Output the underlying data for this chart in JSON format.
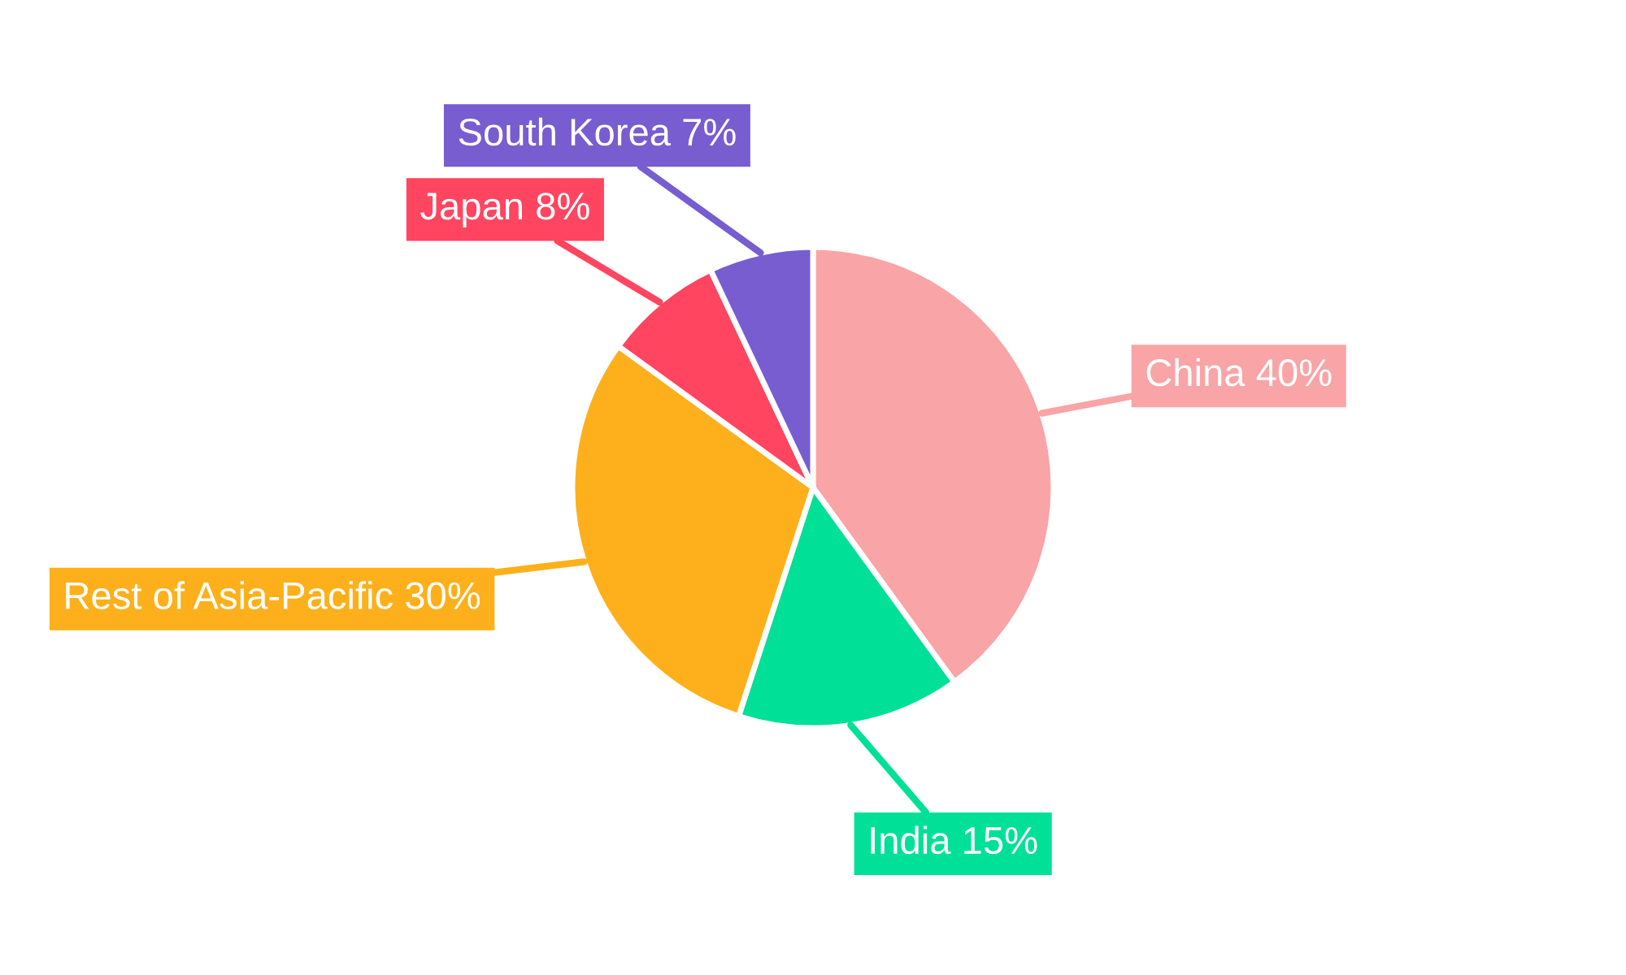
{
  "chart_data": {
    "type": "pie",
    "categories": [
      "China",
      "India",
      "Rest of Asia-Pacific",
      "Japan",
      "South Korea"
    ],
    "values": [
      40,
      15,
      30,
      8,
      7
    ],
    "value_labels": [
      "40%",
      "15%",
      "30%",
      "8%",
      "7%"
    ],
    "colors": [
      "#f9a4a6",
      "#00e096",
      "#fdb01b",
      "#ff4560",
      "#775dd0"
    ],
    "legend": false
  }
}
